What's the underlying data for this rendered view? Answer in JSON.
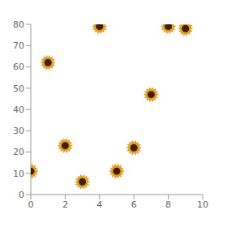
{
  "chart_data": {
    "type": "scatter",
    "x": [
      4,
      8,
      9,
      1,
      7,
      2,
      6,
      0,
      5,
      3
    ],
    "values": [
      79,
      79,
      78,
      62,
      47,
      23,
      22,
      11,
      11,
      6
    ],
    "color": "#f2a20c",
    "marker": "sunflower",
    "xlim": [
      0,
      10
    ],
    "xticks": [
      0,
      2,
      4,
      6,
      8,
      10
    ],
    "ylim": [
      0,
      80
    ],
    "yticks": [
      0,
      10,
      20,
      30,
      40,
      50,
      60,
      70,
      80
    ],
    "grid": false
  }
}
